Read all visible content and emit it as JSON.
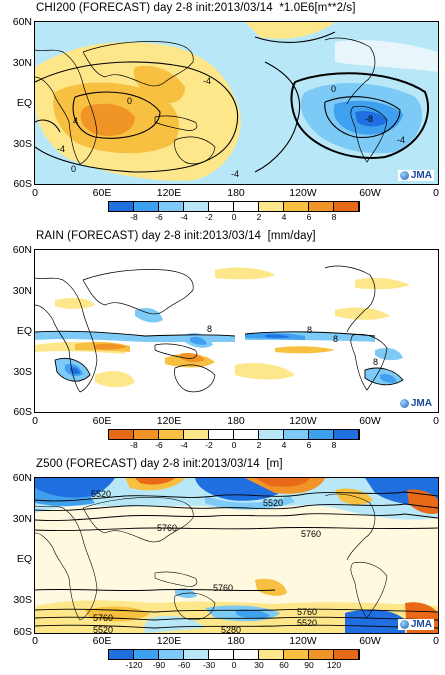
{
  "panels": [
    {
      "title": "CHI200 (FORECAST) day 2-8 init:2013/03/14  *1.0E6[m**2/s]",
      "ylabels": [
        "60N",
        "30N",
        "EQ",
        "30S",
        "60S"
      ],
      "xlabels": [
        "0",
        "60E",
        "120E",
        "180",
        "120W",
        "60W",
        "0"
      ],
      "colorbar_labels": [
        "-8",
        "-6",
        "-4",
        "-2",
        "0",
        "2",
        "4",
        "6",
        "8"
      ],
      "colorbar_colors": [
        "#1f6fe0",
        "#3fa0f0",
        "#7ccaf5",
        "#b8e8f8",
        "#ffffff",
        "#ffffff",
        "#fde78a",
        "#f8c040",
        "#f09428",
        "#e86a18"
      ],
      "contour_labels": [
        "-4",
        "0",
        "4",
        "-4",
        "0",
        "-4",
        "-8",
        "-4",
        "0"
      ],
      "logo": "JMA"
    },
    {
      "title": "RAIN (FORECAST) day 2-8 init:2013/03/14  [mm/day]",
      "ylabels": [
        "60N",
        "30N",
        "EQ",
        "30S",
        "60S"
      ],
      "xlabels": [
        "0",
        "60E",
        "120E",
        "180",
        "120W",
        "60W",
        "0"
      ],
      "colorbar_labels": [
        "-8",
        "-6",
        "-4",
        "-2",
        "0",
        "2",
        "4",
        "6",
        "8"
      ],
      "colorbar_colors": [
        "#e86a18",
        "#f09428",
        "#f8c040",
        "#fde78a",
        "#ffffff",
        "#ffffff",
        "#b8e8f8",
        "#7ccaf5",
        "#3fa0f0",
        "#1f6fe0"
      ],
      "contour_labels": [
        "8",
        "8",
        "8",
        "8"
      ],
      "logo": "JMA"
    },
    {
      "title": "Z500 (FORECAST) day 2-8 init:2013/03/14  [m]",
      "ylabels": [
        "60N",
        "30N",
        "EQ",
        "30S",
        "60S"
      ],
      "xlabels": [
        "0",
        "60E",
        "120E",
        "180",
        "120W",
        "60W",
        "0"
      ],
      "colorbar_labels": [
        "-120",
        "-90",
        "-60",
        "-30",
        "0",
        "30",
        "60",
        "90",
        "120"
      ],
      "colorbar_colors": [
        "#1f6fe0",
        "#3fa0f0",
        "#7ccaf5",
        "#b8e8f8",
        "#ffffff",
        "#ffffff",
        "#fde78a",
        "#f8c040",
        "#f09428",
        "#e86a18"
      ],
      "contour_labels": [
        "5520",
        "5520",
        "5760",
        "5760",
        "5760",
        "5520",
        "5760",
        "5520",
        "5760",
        "5280"
      ],
      "logo": "JMA"
    }
  ]
}
